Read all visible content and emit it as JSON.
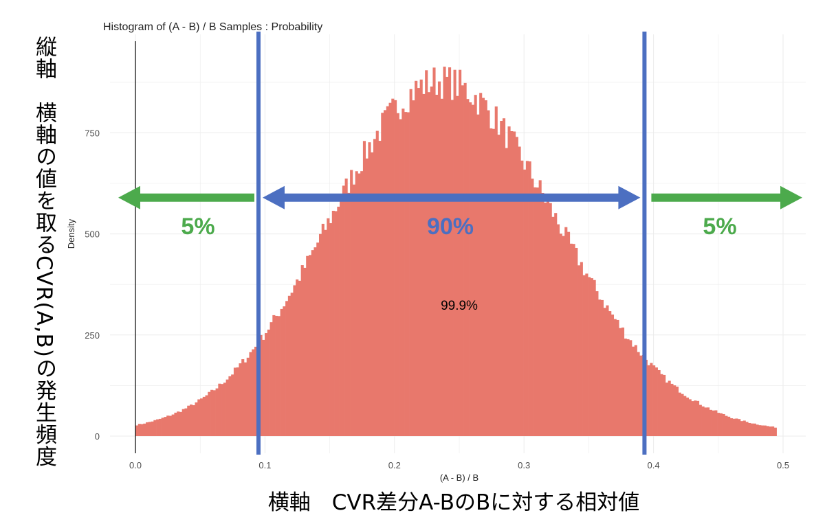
{
  "vertical_annotation": "縦軸　横軸の値を取るCVR(A,B)の発生頻度",
  "bottom_annotation": "横軸　CVR差分A-BのBに対する相対値",
  "colors": {
    "bars": "#e8786c",
    "interval_lines": "#4c6fc1",
    "center_arrow": "#4c6fc1",
    "tail_arrows": "#4caa4c",
    "grid": "#ebebeb",
    "zero_line": "#000000"
  },
  "chart_data": {
    "type": "bar",
    "title": "Histogram of (A - B) / B Samples : Probability",
    "xlabel": "(A - B) / B",
    "ylabel": "Density",
    "xlim": [
      -0.02,
      0.52
    ],
    "ylim": [
      0,
      960
    ],
    "x_ticks": [
      0.0,
      0.1,
      0.2,
      0.3,
      0.4,
      0.5
    ],
    "x_tick_labels": [
      "0.0",
      "0.1",
      "0.2",
      "0.3",
      "0.4",
      "0.5"
    ],
    "y_ticks": [
      0,
      250,
      500,
      750
    ],
    "y_tick_labels": [
      "0",
      "250",
      "500",
      "750"
    ],
    "bins": {
      "start": 0.0,
      "end": 0.495,
      "count": 248
    },
    "shape": {
      "peak_x": 0.235,
      "peak_value": 870,
      "sd_left": 0.085,
      "sd_right": 0.09,
      "noise": 0.05
    },
    "zero_line_x": 0.0,
    "interval_lines": [
      0.095,
      0.393
    ],
    "inner_probability_label": "99.9%",
    "interval_annotations": {
      "left_tail": "5%",
      "center": "90%",
      "right_tail": "5%",
      "arrow_value": 600
    },
    "grid": true
  }
}
